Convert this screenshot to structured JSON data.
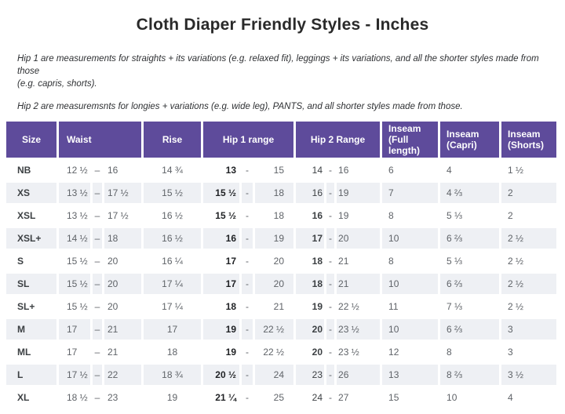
{
  "title": "Cloth Diaper Friendly Styles - Inches",
  "notes": {
    "hip1_line1": "Hip 1 are measurements for straights + its variations (e.g. relaxed fit), leggings + its variations, and all the shorter styles made from those",
    "hip1_line2": "(e.g. capris, shorts).",
    "hip2": "Hip 2 are measuremsnts for longies + variations (e.g. wide leg), PANTS, and all shorter styles made from those."
  },
  "colors": {
    "header-bg": "#5e4b9b",
    "header-text": "#ffffff",
    "row-alt": "#eef0f4",
    "text-gray": "#5f6368",
    "text-dark": "#3c4043",
    "text-strong": "#1f2124"
  },
  "table": {
    "headers": [
      {
        "label": "Size",
        "colspan": 1,
        "align": "center"
      },
      {
        "label": "Waist",
        "colspan": 3,
        "align": "left"
      },
      {
        "label": "Rise",
        "colspan": 1,
        "align": "center"
      },
      {
        "label": "Hip 1 range",
        "colspan": 3,
        "align": "center"
      },
      {
        "label": "Hip 2 Range",
        "colspan": 3,
        "align": "center"
      },
      {
        "label": "Inseam (Full length)",
        "colspan": 1,
        "align": "left"
      },
      {
        "label": "Inseam (Capri)",
        "colspan": 1,
        "align": "left"
      },
      {
        "label": "Inseam (Shorts)",
        "colspan": 1,
        "align": "left"
      }
    ],
    "rows": [
      {
        "size": "NB",
        "waist_min": "12 ½",
        "waist_dash": "–",
        "waist_max": "16",
        "rise": "14 ¾",
        "hip1_min": "13",
        "hip1_dash": "-",
        "hip1_max": "15",
        "hip2_min": "14",
        "hip2_dash": "-",
        "hip2_max": "16",
        "hip2_min_strong": false,
        "inseam_full": "6",
        "inseam_capri": "4",
        "inseam_shorts": "1 ½"
      },
      {
        "size": "XS",
        "waist_min": "13 ½",
        "waist_dash": "–",
        "waist_max": "17 ½",
        "rise": "15 ½",
        "hip1_min": "15 ½",
        "hip1_dash": "-",
        "hip1_max": "18",
        "hip2_min": "16",
        "hip2_dash": "-",
        "hip2_max": "19",
        "hip2_min_strong": false,
        "inseam_full": "7",
        "inseam_capri": "4 ⅔",
        "inseam_shorts": "2"
      },
      {
        "size": "XSL",
        "waist_min": "13 ½",
        "waist_dash": "–",
        "waist_max": "17 ½",
        "rise": "16 ½",
        "hip1_min": "15 ½",
        "hip1_dash": "-",
        "hip1_max": "18",
        "hip2_min": "16",
        "hip2_dash": "-",
        "hip2_max": "19",
        "hip2_min_strong": true,
        "inseam_full": "8",
        "inseam_capri": "5 ⅓",
        "inseam_shorts": "2"
      },
      {
        "size": "XSL+",
        "waist_min": "14 ½",
        "waist_dash": "–",
        "waist_max": "18",
        "rise": "16 ½",
        "hip1_min": "16",
        "hip1_dash": "-",
        "hip1_max": "19",
        "hip2_min": "17",
        "hip2_dash": "-",
        "hip2_max": "20",
        "hip2_min_strong": true,
        "inseam_full": "10",
        "inseam_capri": "6 ⅔",
        "inseam_shorts": "2 ½"
      },
      {
        "size": "S",
        "waist_min": "15 ½",
        "waist_dash": "–",
        "waist_max": "20",
        "rise": "16 ¼",
        "hip1_min": "17",
        "hip1_dash": "-",
        "hip1_max": "20",
        "hip2_min": "18",
        "hip2_dash": "-",
        "hip2_max": "21",
        "hip2_min_strong": true,
        "inseam_full": "8",
        "inseam_capri": "5 ⅓",
        "inseam_shorts": "2 ½"
      },
      {
        "size": "SL",
        "waist_min": "15 ½",
        "waist_dash": "–",
        "waist_max": "20",
        "rise": "17 ¼",
        "hip1_min": "17",
        "hip1_dash": "-",
        "hip1_max": "20",
        "hip2_min": "18",
        "hip2_dash": "-",
        "hip2_max": "21",
        "hip2_min_strong": true,
        "inseam_full": "10",
        "inseam_capri": "6 ⅔",
        "inseam_shorts": "2 ½"
      },
      {
        "size": "SL+",
        "waist_min": "15 ½",
        "waist_dash": "–",
        "waist_max": "20",
        "rise": "17 ¼",
        "hip1_min": "18",
        "hip1_dash": "-",
        "hip1_max": "21",
        "hip2_min": "19",
        "hip2_dash": "-",
        "hip2_max": "22 ½",
        "hip2_min_strong": true,
        "inseam_full": "11",
        "inseam_capri": "7 ⅓",
        "inseam_shorts": "2 ½"
      },
      {
        "size": "M",
        "waist_min": "17",
        "waist_dash": "–",
        "waist_max": "21",
        "rise": "17",
        "hip1_min": "19",
        "hip1_dash": "-",
        "hip1_max": "22 ½",
        "hip2_min": "20",
        "hip2_dash": "-",
        "hip2_max": "23 ½",
        "hip2_min_strong": true,
        "inseam_full": "10",
        "inseam_capri": "6 ⅔",
        "inseam_shorts": "3"
      },
      {
        "size": "ML",
        "waist_min": "17",
        "waist_dash": "–",
        "waist_max": "21",
        "rise": "18",
        "hip1_min": "19",
        "hip1_dash": "-",
        "hip1_max": "22 ½",
        "hip2_min": "20",
        "hip2_dash": "-",
        "hip2_max": "23 ½",
        "hip2_min_strong": true,
        "inseam_full": "12",
        "inseam_capri": "8",
        "inseam_shorts": "3"
      },
      {
        "size": "L",
        "waist_min": "17 ½",
        "waist_dash": "–",
        "waist_max": "22",
        "rise": "18 ¾",
        "hip1_min": "20 ½",
        "hip1_dash": "-",
        "hip1_max": "24",
        "hip2_min": "23",
        "hip2_dash": "-",
        "hip2_max": "26",
        "hip2_min_strong": false,
        "inseam_full": "13",
        "inseam_capri": "8 ⅔",
        "inseam_shorts": "3 ½"
      },
      {
        "size": "XL",
        "waist_min": "18 ½",
        "waist_dash": "–",
        "waist_max": "23",
        "rise": "19",
        "hip1_min": "21 ¼",
        "hip1_dash": "-",
        "hip1_max": "25",
        "hip2_min": "24",
        "hip2_dash": "-",
        "hip2_max": "27",
        "hip2_min_strong": false,
        "inseam_full": "15",
        "inseam_capri": "10",
        "inseam_shorts": "4"
      }
    ]
  }
}
